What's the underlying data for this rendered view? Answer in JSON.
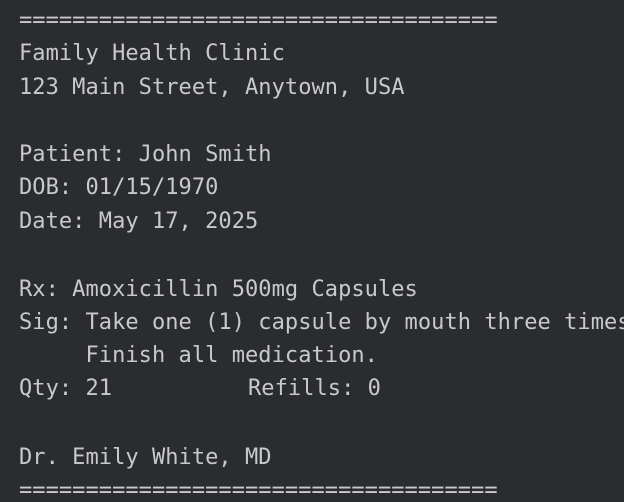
{
  "separator": "====================================",
  "clinic": {
    "name": "Family Health Clinic",
    "address": "123 Main Street, Anytown, USA"
  },
  "patient": {
    "name_line": "Patient: John Smith",
    "dob_line": "DOB: 01/15/1970",
    "date_line": "Date: May 17, 2025"
  },
  "prescription": {
    "rx_line": "Rx: Amoxicillin 500mg Capsules",
    "sig_line": "Sig: Take one (1) capsule by mouth three times",
    "sig_continuation": "     Finish all medication.",
    "qty_line": "Qty: 21",
    "refills_line": "Refills: 0"
  },
  "prescriber": {
    "signature_line": "Dr. Emily White, MD"
  }
}
